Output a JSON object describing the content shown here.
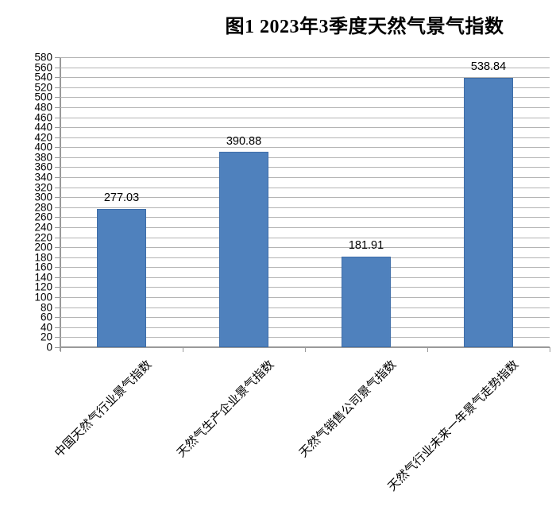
{
  "chart_data": {
    "type": "bar",
    "title": "图1 2023年3季度天然气景气指数",
    "categories": [
      "中国天然气行业景气指数",
      "天然气生产企业景气指数",
      "天然气销售公司景气指数",
      "天然气行业未来一年景气走势指数"
    ],
    "values": [
      277.03,
      390.88,
      181.91,
      538.84
    ],
    "value_labels": [
      "277.03",
      "390.88",
      "181.91",
      "538.84"
    ],
    "xlabel": "",
    "ylabel": "",
    "ylim": [
      0,
      580
    ],
    "ytick_step": 20,
    "grid": "horizontal",
    "legend_position": "none",
    "colors": {
      "bar_fill": "#4F81BD",
      "bar_border": "#3E6DA8",
      "gridline": "#B4B4B4",
      "axis": "#9A9A9A",
      "text": "#000000",
      "background": "#FFFFFF"
    }
  }
}
